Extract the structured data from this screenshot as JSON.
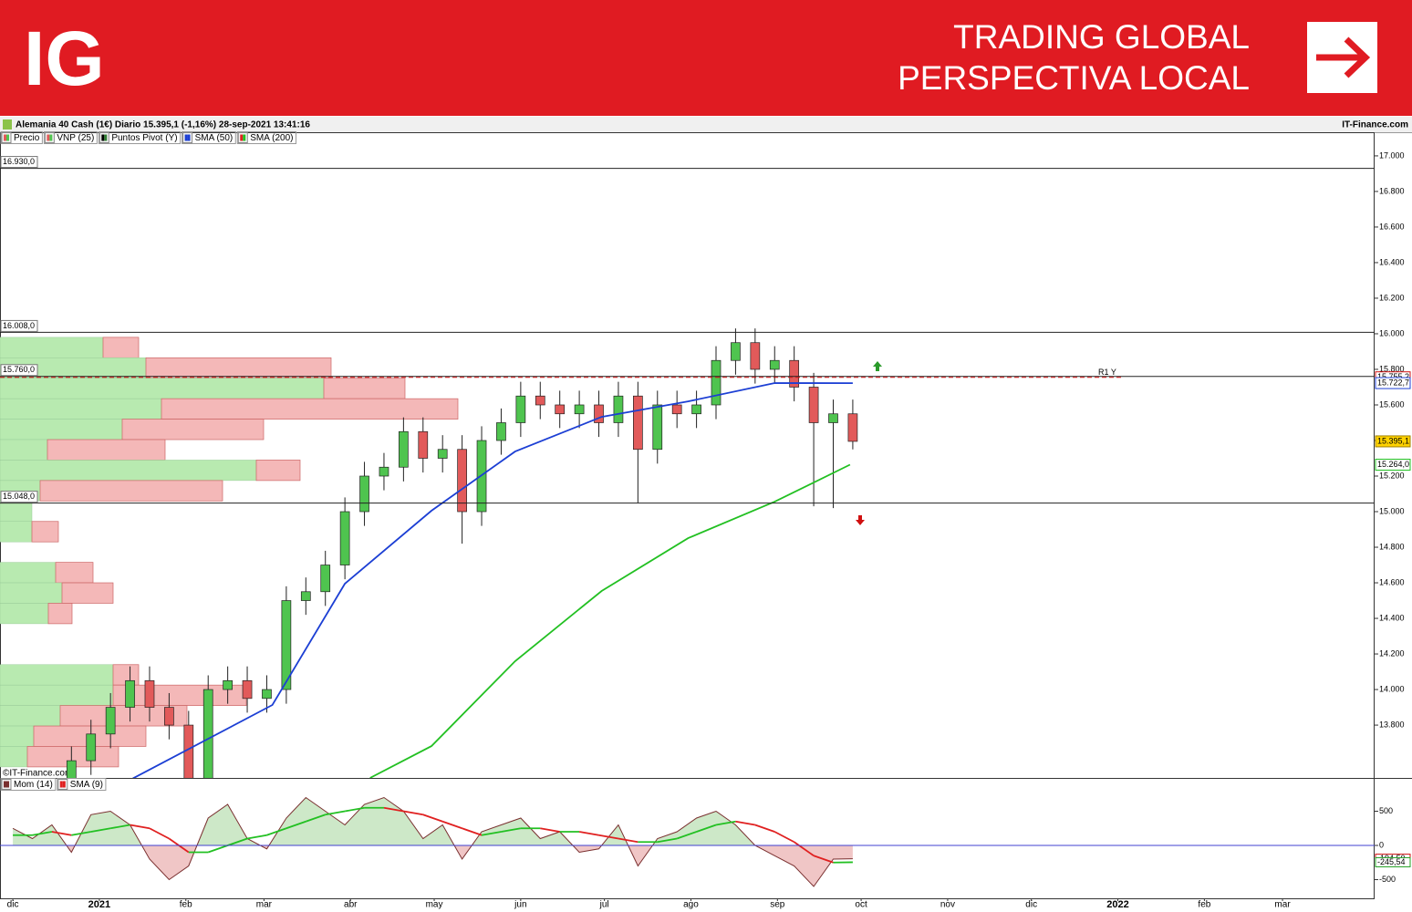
{
  "header": {
    "logo": "IG",
    "tagline": [
      "TRADING GLOBAL",
      "PERSPECTIVA LOCAL"
    ]
  },
  "chart_data": [
    {
      "type": "candlestick",
      "title": "Alemania 40 Cash (1€) Diario 15.395,1 (-1,16%) 28-sep-2021 13:41:16",
      "source": "IT-Finance.com",
      "watermark": "©IT-Finance.com",
      "legend": [
        {
          "name": "Precio",
          "colors": [
            "#e25a5a",
            "#4fc44f"
          ]
        },
        {
          "name": "VNP (25)",
          "colors": [
            "#e25a5a",
            "#4fc44f"
          ]
        },
        {
          "name": "Puntos Pivot (Y)",
          "colors": [
            "#000000",
            "#2e7d32"
          ]
        },
        {
          "name": "SMA (50)",
          "colors": [
            "#1c3fd4",
            "#1c3fd4"
          ]
        },
        {
          "name": "SMA (200)",
          "colors": [
            "#e02020",
            "#22c022"
          ]
        }
      ],
      "xlim": [
        -4.6,
        488
      ],
      "xticks": [
        {
          "value": 0,
          "label": "dic"
        },
        {
          "value": 31,
          "label": "2021"
        },
        {
          "value": 62,
          "label": "feb"
        },
        {
          "value": 90,
          "label": "mar"
        },
        {
          "value": 121,
          "label": "abr"
        },
        {
          "value": 151,
          "label": "may"
        },
        {
          "value": 182,
          "label": "jun"
        },
        {
          "value": 212,
          "label": "jul"
        },
        {
          "value": 243,
          "label": "ago"
        },
        {
          "value": 274,
          "label": "sep"
        },
        {
          "value": 304,
          "label": "oct"
        },
        {
          "value": 335,
          "label": "nov"
        },
        {
          "value": 365,
          "label": "dic"
        },
        {
          "value": 396,
          "label": "2022"
        },
        {
          "value": 427,
          "label": "feb"
        },
        {
          "value": 455,
          "label": "mar"
        }
      ],
      "ylim": [
        13503,
        17056
      ],
      "yticks": [
        {
          "value": 13800,
          "label": "13.800"
        },
        {
          "value": 14000,
          "label": "14.000"
        },
        {
          "value": 14200,
          "label": "14.200"
        },
        {
          "value": 14400,
          "label": "14.400"
        },
        {
          "value": 14600,
          "label": "14.600"
        },
        {
          "value": 14800,
          "label": "14.800"
        },
        {
          "value": 15000,
          "label": "15.000"
        },
        {
          "value": 15200,
          "label": "15.200"
        },
        {
          "value": 15400,
          "label": "15.400"
        },
        {
          "value": 15600,
          "label": "15.600"
        },
        {
          "value": 15800,
          "label": "15.800"
        },
        {
          "value": 16000,
          "label": "16.000"
        },
        {
          "value": 16200,
          "label": "16.200"
        },
        {
          "value": 16400,
          "label": "16.400"
        },
        {
          "value": 16600,
          "label": "16.600"
        },
        {
          "value": 16800,
          "label": "16.800"
        },
        {
          "value": 17000,
          "label": "17.000"
        }
      ],
      "candles": {
        "up_color": "#4fc44f",
        "down_color": "#e25a5a",
        "x": [
          0,
          7,
          14,
          21,
          28,
          35,
          42,
          49,
          56,
          63,
          70,
          77,
          84,
          91,
          98,
          105,
          112,
          119,
          126,
          133,
          140,
          147,
          154,
          161,
          168,
          175,
          182,
          189,
          196,
          203,
          210,
          217,
          224,
          231,
          238,
          245,
          252,
          259,
          266,
          273,
          280,
          287,
          294,
          301
        ],
        "open": [
          13400,
          13300,
          13250,
          13400,
          13600,
          13750,
          13900,
          14050,
          13900,
          13800,
          13450,
          14000,
          14050,
          13950,
          14000,
          14500,
          14550,
          14700,
          15000,
          15200,
          15250,
          15450,
          15300,
          15350,
          15000,
          15400,
          15500,
          15650,
          15600,
          15550,
          15600,
          15500,
          15650,
          15350,
          15600,
          15550,
          15600,
          15850,
          15950,
          15800,
          15850,
          15700,
          15500,
          15550
        ],
        "high": [
          13480,
          13380,
          13480,
          13680,
          13830,
          13980,
          14130,
          14130,
          13980,
          13880,
          14080,
          14130,
          14130,
          14080,
          14580,
          14630,
          14780,
          15080,
          15280,
          15330,
          15530,
          15530,
          15430,
          15430,
          15480,
          15580,
          15730,
          15730,
          15680,
          15680,
          15680,
          15730,
          15730,
          15680,
          15680,
          15680,
          15930,
          16030,
          16030,
          15930,
          15930,
          15780,
          15630,
          15630
        ],
        "low": [
          13220,
          13170,
          13170,
          13320,
          13520,
          13670,
          13820,
          13820,
          13720,
          13300,
          13370,
          13920,
          13870,
          13870,
          13920,
          14420,
          14470,
          14620,
          14920,
          15120,
          15170,
          15220,
          15220,
          14820,
          14920,
          15320,
          15420,
          15520,
          15470,
          15470,
          15420,
          15420,
          15050,
          15270,
          15470,
          15470,
          15520,
          15770,
          15720,
          15720,
          15620,
          15030,
          15020,
          15350
        ],
        "close": [
          13300,
          13250,
          13400,
          13600,
          13750,
          13900,
          14050,
          13900,
          13800,
          13450,
          14000,
          14050,
          13950,
          14000,
          14500,
          14550,
          14700,
          15000,
          15200,
          15250,
          15450,
          15300,
          15350,
          15000,
          15400,
          15500,
          15650,
          15600,
          15550,
          15600,
          15500,
          15650,
          15350,
          15600,
          15550,
          15600,
          15850,
          15950,
          15800,
          15850,
          15700,
          15500,
          15550,
          15395.1
        ]
      },
      "last_price": {
        "value": 15395.1,
        "label": "15.395,1",
        "color": "#ffd200"
      },
      "levels": [
        {
          "value": 16930,
          "label": "16.930,0"
        },
        {
          "value": 16008,
          "label": "16.008,0"
        },
        {
          "value": 15760,
          "label": "15.760,0"
        },
        {
          "value": 15048,
          "label": "15.048,0"
        }
      ],
      "pivot": {
        "name": "R1 Y",
        "value": 15755.2,
        "label": "15.755,2",
        "color": "#d01010"
      },
      "sma": [
        {
          "name": "SMA (50)",
          "color": "#1c3fd4",
          "x": [
            43,
            93,
            119,
            150,
            180,
            211,
            242,
            273,
            301
          ],
          "values": [
            13500,
            13913,
            14595,
            15005,
            15338,
            15533,
            15620,
            15723,
            15722.7
          ],
          "end_label": "15.722,7"
        },
        {
          "name": "SMA (200)",
          "color": "#22c022",
          "x": [
            128,
            150,
            180,
            211,
            242,
            273,
            300
          ],
          "values": [
            13503,
            13682,
            14159,
            14554,
            14851,
            15056,
            15264
          ],
          "end_label": "15.264,0"
        }
      ],
      "volume_profile": {
        "up_color": "#b8eab0",
        "down_color": "#f4b8b8",
        "bins": [
          15980,
          15865,
          15750,
          15635,
          15520,
          15405,
          15290,
          15175,
          15060,
          14945,
          14830,
          14715,
          14600,
          14485,
          14370,
          14255,
          14140,
          14025,
          13910,
          13795,
          13680,
          13565
        ],
        "up": [
          113,
          160,
          355,
          177,
          134,
          52,
          281,
          44,
          35,
          35,
          0,
          61,
          68,
          53,
          0,
          0,
          124,
          124,
          66,
          37,
          30
        ],
        "down": [
          39,
          203,
          89,
          325,
          155,
          129,
          48,
          200,
          0,
          29,
          0,
          41,
          56,
          26,
          0,
          0,
          28,
          146,
          139,
          123,
          100
        ]
      }
    },
    {
      "type": "momentum",
      "ylim": [
        -773,
        960
      ],
      "yticks": [
        500,
        0,
        -500
      ],
      "zero_color": "#4040d0",
      "series": [
        {
          "name": "Mom (14)",
          "color": "#7a3030",
          "values": [
            250,
            100,
            300,
            -100,
            450,
            500,
            300,
            -200,
            -500,
            -300,
            400,
            600,
            100,
            -50,
            400,
            700,
            500,
            300,
            600,
            700,
            500,
            100,
            300,
            -200,
            200,
            300,
            400,
            100,
            200,
            -100,
            -50,
            300,
            -300,
            100,
            200,
            400,
            500,
            300,
            0,
            -150,
            -300,
            -600,
            -200,
            -194.5
          ],
          "end_label": "-194,50"
        },
        {
          "name": "SMA (9)",
          "color": "#e02020",
          "values": [
            150,
            150,
            200,
            150,
            200,
            250,
            300,
            250,
            100,
            -100,
            -100,
            0,
            100,
            150,
            250,
            350,
            450,
            500,
            550,
            550,
            500,
            450,
            350,
            250,
            150,
            200,
            250,
            250,
            200,
            200,
            150,
            100,
            50,
            50,
            100,
            200,
            300,
            350,
            300,
            200,
            50,
            -150,
            -250,
            -245.54
          ],
          "end_label": "-245,54"
        }
      ]
    }
  ]
}
